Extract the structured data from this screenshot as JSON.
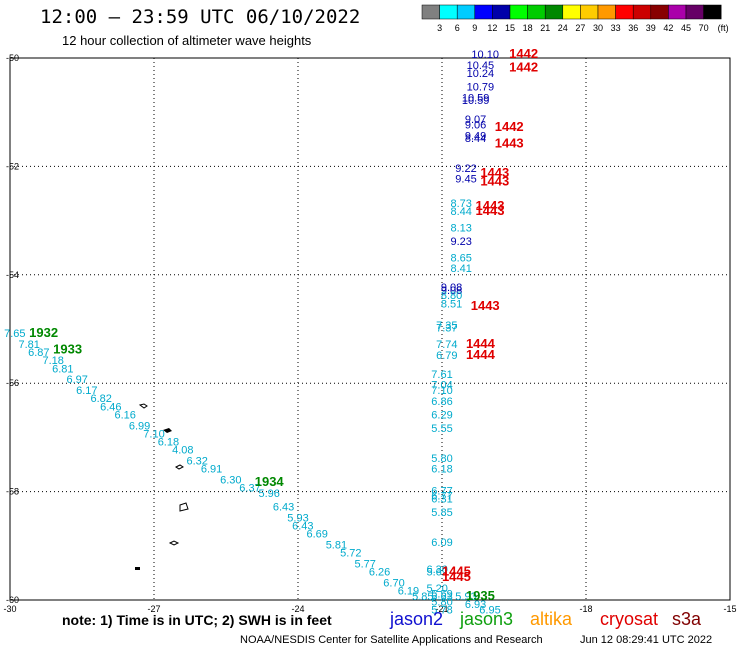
{
  "header": {
    "title": "12:00 – 23:59 UTC 06/10/2022",
    "subtitle": "12 hour collection of altimeter wave heights"
  },
  "footer": {
    "note": "note: 1) Time is in UTC; 2) SWH is in feet",
    "credit": "NOAA/NESDIS Center for Satellite Applications and Research",
    "timestamp": "Jun 12 08:29:41 UTC 2022"
  },
  "satellites": [
    {
      "name": "jason2",
      "color": "#1010d0"
    },
    {
      "name": "jason3",
      "color": "#10a010"
    },
    {
      "name": "altika",
      "color": "#ff9900"
    },
    {
      "name": "cryosat",
      "color": "#e00000"
    },
    {
      "name": "s3a",
      "color": "#800000"
    }
  ],
  "chart_data": {
    "type": "scatter",
    "title": "12:00 – 23:59 UTC 06/10/2022",
    "subtitle": "12 hour collection of altimeter wave heights",
    "xlim": [
      -30,
      -15
    ],
    "ylim": [
      -60,
      -50
    ],
    "x_ticks": [
      "-30",
      "-27",
      "-24",
      "-21",
      "-18",
      "-15"
    ],
    "y_ticks": [
      "-50",
      "-52",
      "-54",
      "-56",
      "-58",
      "-60"
    ],
    "grid": "dotted",
    "colorbar": {
      "unit": "(ft)",
      "ticks": [
        "3",
        "6",
        "9",
        "12",
        "15",
        "18",
        "21",
        "24",
        "27",
        "30",
        "33",
        "36",
        "39",
        "42",
        "45",
        "70"
      ],
      "colors": [
        "#808080",
        "#00ffff",
        "#00ccff",
        "#0000ff",
        "#0000aa",
        "#00ff00",
        "#00cc00",
        "#008800",
        "#ffff00",
        "#ffcc00",
        "#ff9900",
        "#ff0000",
        "#cc0000",
        "#880000",
        "#aa00aa",
        "#660066",
        "#000000"
      ]
    },
    "swh_points": [
      {
        "x": -20.1,
        "y": -50.0,
        "label": "10.10",
        "color": "#0000aa"
      },
      {
        "x": -20.2,
        "y": -50.2,
        "label": "10.45",
        "color": "#0000aa"
      },
      {
        "x": -20.2,
        "y": -50.35,
        "label": "10.24",
        "color": "#0000aa"
      },
      {
        "x": -20.2,
        "y": -50.6,
        "label": "10.79",
        "color": "#0000aa"
      },
      {
        "x": -20.3,
        "y": -50.8,
        "label": "10.59",
        "color": "#0000aa"
      },
      {
        "x": -20.3,
        "y": -50.85,
        "label": "10.59",
        "color": "#0000aa"
      },
      {
        "x": -20.3,
        "y": -51.2,
        "label": "9.07",
        "color": "#0000aa"
      },
      {
        "x": -20.3,
        "y": -51.3,
        "label": "9.06",
        "color": "#0000aa"
      },
      {
        "x": -20.3,
        "y": -51.5,
        "label": "9.49",
        "color": "#0000aa"
      },
      {
        "x": -20.3,
        "y": -51.55,
        "label": "8.44",
        "color": "#0000aa"
      },
      {
        "x": -20.5,
        "y": -52.1,
        "label": "9.22",
        "color": "#0000aa"
      },
      {
        "x": -20.5,
        "y": -52.3,
        "label": "9.45",
        "color": "#0000aa"
      },
      {
        "x": -20.6,
        "y": -52.75,
        "label": "8.73",
        "color": "#00aacc"
      },
      {
        "x": -20.6,
        "y": -52.9,
        "label": "8.44",
        "color": "#00aacc"
      },
      {
        "x": -20.6,
        "y": -53.2,
        "label": "8.13",
        "color": "#00aacc"
      },
      {
        "x": -20.6,
        "y": -53.45,
        "label": "9.23",
        "color": "#0000aa"
      },
      {
        "x": -20.6,
        "y": -53.75,
        "label": "8.65",
        "color": "#00aacc"
      },
      {
        "x": -20.6,
        "y": -53.95,
        "label": "8.41",
        "color": "#00aacc"
      },
      {
        "x": -20.8,
        "y": -54.3,
        "label": "9.08",
        "color": "#0000aa"
      },
      {
        "x": -20.8,
        "y": -54.35,
        "label": "9.08",
        "color": "#0000aa"
      },
      {
        "x": -20.8,
        "y": -54.45,
        "label": "8.80",
        "color": "#00aacc"
      },
      {
        "x": -20.8,
        "y": -54.6,
        "label": "8.51",
        "color": "#00aacc"
      },
      {
        "x": -20.9,
        "y": -55.0,
        "label": "7.35",
        "color": "#00aacc"
      },
      {
        "x": -20.9,
        "y": -55.05,
        "label": "7.37",
        "color": "#00aacc"
      },
      {
        "x": -20.9,
        "y": -55.35,
        "label": "7.74",
        "color": "#00aacc"
      },
      {
        "x": -20.9,
        "y": -55.55,
        "label": "6.79",
        "color": "#00aacc"
      },
      {
        "x": -21.0,
        "y": -55.9,
        "label": "7.61",
        "color": "#00aacc"
      },
      {
        "x": -21.0,
        "y": -56.1,
        "label": "7.04",
        "color": "#00aacc"
      },
      {
        "x": -21.0,
        "y": -56.2,
        "label": "7.10",
        "color": "#00aacc"
      },
      {
        "x": -21.0,
        "y": -56.4,
        "label": "6.86",
        "color": "#00aacc"
      },
      {
        "x": -21.0,
        "y": -56.65,
        "label": "6.29",
        "color": "#00aacc"
      },
      {
        "x": -21.0,
        "y": -56.9,
        "label": "5.55",
        "color": "#00aacc"
      },
      {
        "x": -21.0,
        "y": -57.45,
        "label": "5.80",
        "color": "#00aacc"
      },
      {
        "x": -21.0,
        "y": -57.65,
        "label": "6.18",
        "color": "#00aacc"
      },
      {
        "x": -21.0,
        "y": -58.05,
        "label": "6.77",
        "color": "#00aacc"
      },
      {
        "x": -21.0,
        "y": -58.15,
        "label": "6.77",
        "color": "#00aacc"
      },
      {
        "x": -21.0,
        "y": -58.2,
        "label": "6.31",
        "color": "#00aacc"
      },
      {
        "x": -21.0,
        "y": -58.45,
        "label": "5.85",
        "color": "#00aacc"
      },
      {
        "x": -21.0,
        "y": -59.0,
        "label": "6.09",
        "color": "#00aacc"
      },
      {
        "x": -21.1,
        "y": -59.5,
        "label": "6.30",
        "color": "#00aacc"
      },
      {
        "x": -21.1,
        "y": -59.55,
        "label": "5.62",
        "color": "#00aacc"
      },
      {
        "x": -21.1,
        "y": -59.85,
        "label": "5.20",
        "color": "#00aacc"
      },
      {
        "x": -21.0,
        "y": -59.95,
        "label": "5.59",
        "color": "#00aacc"
      },
      {
        "x": -21.0,
        "y": -60.0,
        "label": "5.63",
        "color": "#00aacc"
      },
      {
        "x": -21.0,
        "y": -60.1,
        "label": "5.80",
        "color": "#00aacc"
      },
      {
        "x": -20.5,
        "y": -60.0,
        "label": "5.93",
        "color": "#00aacc"
      },
      {
        "x": -21.0,
        "y": -60.25,
        "label": "5.78",
        "color": "#00aacc"
      },
      {
        "x": -20.0,
        "y": -60.25,
        "label": "6.95",
        "color": "#00aacc"
      },
      {
        "x": -20.3,
        "y": -60.15,
        "label": "6.93",
        "color": "#00aacc"
      },
      {
        "x": -29.9,
        "y": -55.15,
        "label": "7.65",
        "color": "#00aacc"
      },
      {
        "x": -29.6,
        "y": -55.35,
        "label": "7.81",
        "color": "#00aacc"
      },
      {
        "x": -29.4,
        "y": -55.5,
        "label": "6.87",
        "color": "#00aacc"
      },
      {
        "x": -29.1,
        "y": -55.65,
        "label": "7.18",
        "color": "#00aacc"
      },
      {
        "x": -28.9,
        "y": -55.8,
        "label": "6.81",
        "color": "#00aacc"
      },
      {
        "x": -28.6,
        "y": -56.0,
        "label": "6.97",
        "color": "#00aacc"
      },
      {
        "x": -28.4,
        "y": -56.2,
        "label": "6.17",
        "color": "#00aacc"
      },
      {
        "x": -28.1,
        "y": -56.35,
        "label": "6.82",
        "color": "#00aacc"
      },
      {
        "x": -27.9,
        "y": -56.5,
        "label": "6.46",
        "color": "#00aacc"
      },
      {
        "x": -27.6,
        "y": -56.65,
        "label": "6.16",
        "color": "#00aacc"
      },
      {
        "x": -27.3,
        "y": -56.85,
        "label": "6.99",
        "color": "#00aacc"
      },
      {
        "x": -27.0,
        "y": -57.0,
        "label": "7.10",
        "color": "#00aacc"
      },
      {
        "x": -26.7,
        "y": -57.15,
        "label": "6.18",
        "color": "#00aacc"
      },
      {
        "x": -26.4,
        "y": -57.3,
        "label": "4.08",
        "color": "#00aacc"
      },
      {
        "x": -26.1,
        "y": -57.5,
        "label": "6.32",
        "color": "#00aacc"
      },
      {
        "x": -25.8,
        "y": -57.65,
        "label": "6.91",
        "color": "#00aacc"
      },
      {
        "x": -25.4,
        "y": -57.85,
        "label": "6.30",
        "color": "#00aacc"
      },
      {
        "x": -25.0,
        "y": -58.0,
        "label": "6.37",
        "color": "#00aacc"
      },
      {
        "x": -24.6,
        "y": -58.1,
        "label": "5.96",
        "color": "#00aacc"
      },
      {
        "x": -24.3,
        "y": -58.35,
        "label": "6.43",
        "color": "#00aacc"
      },
      {
        "x": -24.0,
        "y": -58.55,
        "label": "5.93",
        "color": "#00aacc"
      },
      {
        "x": -23.9,
        "y": -58.7,
        "label": "6.43",
        "color": "#00aacc"
      },
      {
        "x": -23.6,
        "y": -58.85,
        "label": "6.69",
        "color": "#00aacc"
      },
      {
        "x": -23.2,
        "y": -59.05,
        "label": "5.81",
        "color": "#00aacc"
      },
      {
        "x": -22.9,
        "y": -59.2,
        "label": "5.72",
        "color": "#00aacc"
      },
      {
        "x": -22.6,
        "y": -59.4,
        "label": "5.77",
        "color": "#00aacc"
      },
      {
        "x": -22.3,
        "y": -59.55,
        "label": "6.26",
        "color": "#00aacc"
      },
      {
        "x": -22.0,
        "y": -59.75,
        "label": "6.70",
        "color": "#00aacc"
      },
      {
        "x": -21.7,
        "y": -59.9,
        "label": "6.19",
        "color": "#00aacc"
      },
      {
        "x": -21.4,
        "y": -60.0,
        "label": "5.85",
        "color": "#00aacc"
      }
    ],
    "time_labels": [
      {
        "x": -19.3,
        "y": -50.0,
        "label": "1442",
        "color": "#e00000"
      },
      {
        "x": -19.3,
        "y": -50.25,
        "label": "1442",
        "color": "#e00000"
      },
      {
        "x": -19.6,
        "y": -51.35,
        "label": "1442",
        "color": "#e00000"
      },
      {
        "x": -19.6,
        "y": -51.65,
        "label": "1443",
        "color": "#e00000"
      },
      {
        "x": -19.9,
        "y": -52.2,
        "label": "1443",
        "color": "#e00000"
      },
      {
        "x": -19.9,
        "y": -52.35,
        "label": "1443",
        "color": "#e00000"
      },
      {
        "x": -20.0,
        "y": -52.8,
        "label": "1443",
        "color": "#e00000"
      },
      {
        "x": -20.0,
        "y": -52.9,
        "label": "1443",
        "color": "#e00000"
      },
      {
        "x": -20.1,
        "y": -54.65,
        "label": "1443",
        "color": "#e00000"
      },
      {
        "x": -20.2,
        "y": -55.35,
        "label": "1444",
        "color": "#e00000"
      },
      {
        "x": -20.2,
        "y": -55.55,
        "label": "1444",
        "color": "#e00000"
      },
      {
        "x": -20.7,
        "y": -59.55,
        "label": "1445",
        "color": "#e00000"
      },
      {
        "x": -20.7,
        "y": -59.65,
        "label": "1445",
        "color": "#e00000"
      },
      {
        "x": -29.3,
        "y": -55.15,
        "label": "1932",
        "color": "#008800"
      },
      {
        "x": -28.8,
        "y": -55.45,
        "label": "1933",
        "color": "#008800"
      },
      {
        "x": -24.6,
        "y": -57.9,
        "label": "1934",
        "color": "#008800"
      },
      {
        "x": -20.2,
        "y": -60.0,
        "label": "1935",
        "color": "#008800"
      }
    ]
  }
}
